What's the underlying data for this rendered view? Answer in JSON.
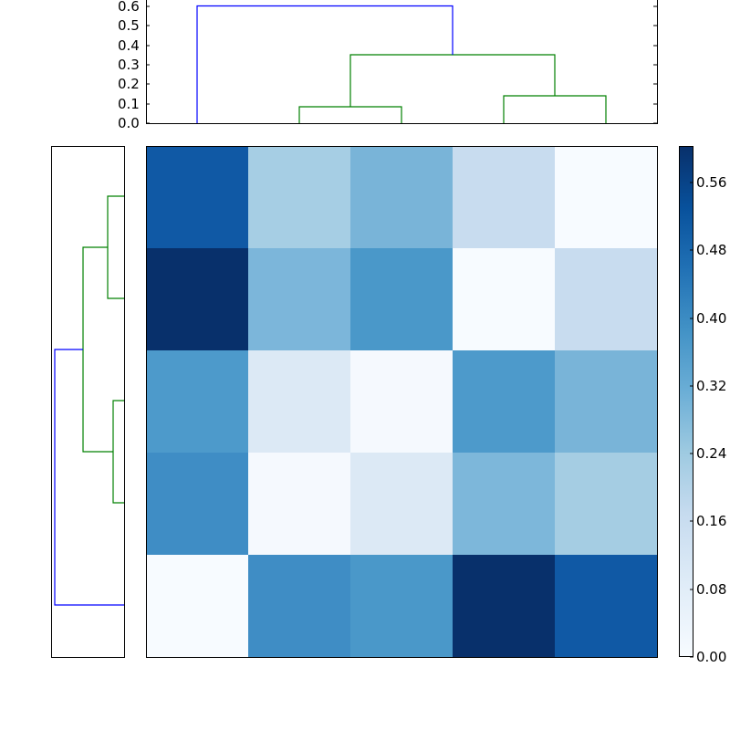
{
  "chart_data": [
    {
      "type": "heatmap",
      "title": "",
      "xlabel": "",
      "ylabel": "",
      "rows": 5,
      "cols": 5,
      "colormap": "Blues",
      "values": [
        [
          0.5,
          0.2,
          0.28,
          0.14,
          0.0
        ],
        [
          0.6,
          0.28,
          0.36,
          0.0,
          0.14
        ],
        [
          0.36,
          0.09,
          0.0,
          0.36,
          0.28
        ],
        [
          0.38,
          0.0,
          0.09,
          0.27,
          0.2
        ],
        [
          0.0,
          0.38,
          0.36,
          0.6,
          0.5
        ]
      ],
      "cell_colors": [
        [
          "#1059a5",
          "#a6cee4",
          "#79b4d8",
          "#c8dcef",
          "#f7fbff"
        ],
        [
          "#08306b",
          "#7cb6da",
          "#4a98c9",
          "#f7fbff",
          "#c8dcef"
        ],
        [
          "#4d9acb",
          "#dce9f5",
          "#f5f9fe",
          "#4d9acb",
          "#79b4d8"
        ],
        [
          "#3f8dc5",
          "#f5f9fe",
          "#dce9f5",
          "#7db7da",
          "#a5cde3"
        ],
        [
          "#f7fbff",
          "#3f8dc5",
          "#4a98c9",
          "#08306b",
          "#1059a5"
        ]
      ],
      "colorbar": {
        "range": [
          0.0,
          0.603
        ],
        "ticks": [
          0.0,
          0.08,
          0.16,
          0.24,
          0.32,
          0.4,
          0.48,
          0.56
        ],
        "tick_labels": [
          "0.00",
          "0.08",
          "0.16",
          "0.24",
          "0.32",
          "0.40",
          "0.48",
          "0.56"
        ]
      }
    },
    {
      "type": "dendrogram",
      "orientation": "top",
      "ylim": [
        0.0,
        0.62
      ],
      "yticks": [
        0.0,
        0.1,
        0.2,
        0.3,
        0.4,
        0.5,
        0.6
      ],
      "ytick_labels": [
        "0.0",
        "0.1",
        "0.2",
        "0.3",
        "0.4",
        "0.5",
        "0.6"
      ],
      "leaves": 5,
      "links": [
        {
          "left_leaf_pos": 2,
          "right_leaf_pos": 3,
          "height": 0.084,
          "color": "#008000"
        },
        {
          "left_leaf_pos": 4,
          "right_leaf_pos": 5,
          "height": 0.141,
          "color": "#008000"
        },
        {
          "left_leaf_pos": 2.5,
          "right_leaf_pos": 4.5,
          "height": 0.352,
          "color": "#008000"
        },
        {
          "left_leaf_pos": 1,
          "right_leaf_pos": 3.5,
          "height": 0.603,
          "color": "#0000ff"
        }
      ]
    },
    {
      "type": "dendrogram",
      "orientation": "left",
      "leaves": 5,
      "links": [
        {
          "top_leaf_pos": 1,
          "bottom_leaf_pos": 2,
          "height": 0.22,
          "color": "#008000"
        },
        {
          "top_leaf_pos": 3,
          "bottom_leaf_pos": 4,
          "height": 0.15,
          "color": "#008000"
        },
        {
          "top_leaf_pos": 1.5,
          "bottom_leaf_pos": 3.5,
          "height": 0.56,
          "color": "#008000"
        },
        {
          "top_leaf_pos": 2.5,
          "bottom_leaf_pos": 5,
          "height": 0.95,
          "color": "#0000ff"
        }
      ]
    }
  ],
  "top_axis": {
    "ytick_labels": [
      "0.0",
      "0.1",
      "0.2",
      "0.3",
      "0.4",
      "0.5",
      "0.6"
    ]
  },
  "colorbar_axis": {
    "tick_labels": [
      "0.00",
      "0.08",
      "0.16",
      "0.24",
      "0.32",
      "0.40",
      "0.48",
      "0.56"
    ]
  },
  "colors": {
    "cluster_color": "#008000",
    "above_threshold_color": "#0000ff"
  }
}
